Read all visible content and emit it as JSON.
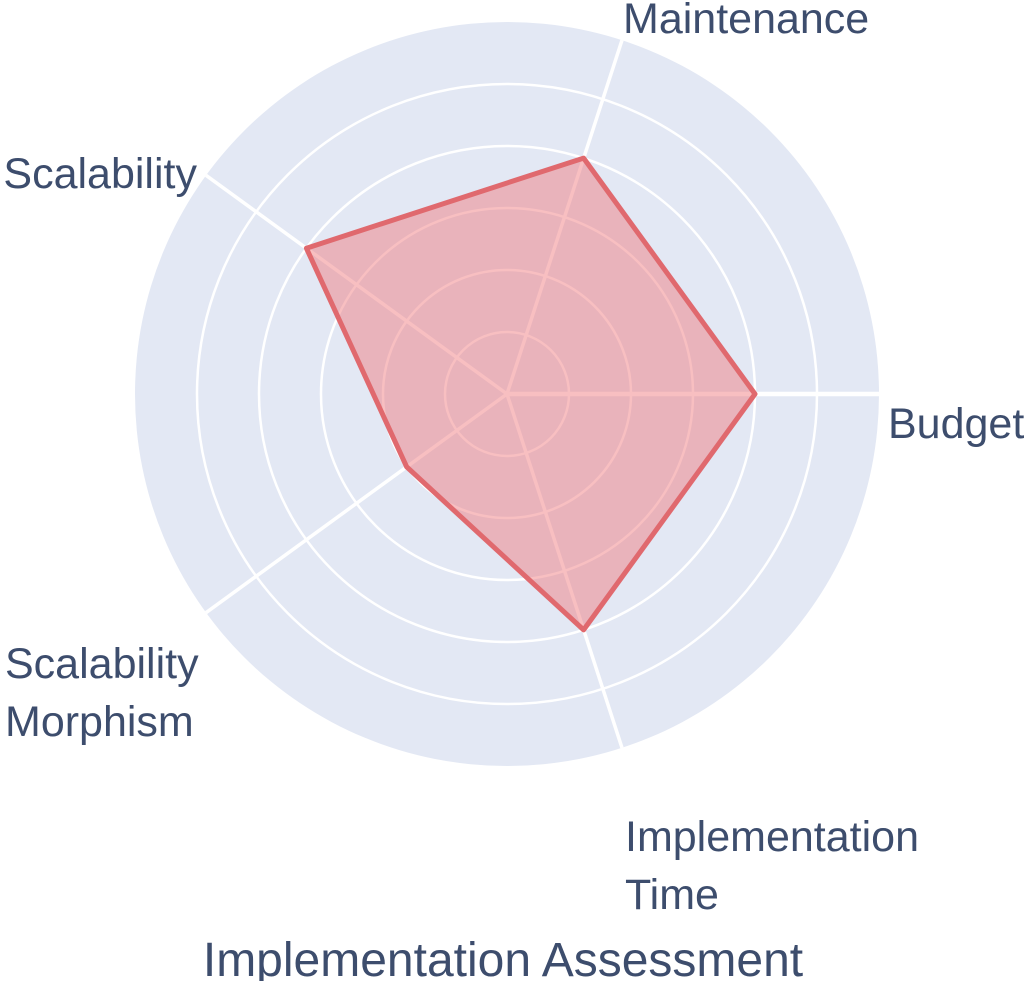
{
  "title": {
    "text": "Implementation Assessment"
  },
  "colors": {
    "background": "#FFFFFF",
    "disc": "#E3E8F4",
    "grid_line": "#FFFFFF",
    "series_stroke": "#E0696E",
    "series_fill": "#F0767B",
    "series_fill_opacity": 0.47,
    "label_text": "#3D4D6D"
  },
  "chart_data": {
    "type": "radar",
    "title": "Implementation Assessment",
    "categories": [
      "Maintenance",
      "Budget",
      "Implementation Time",
      "Scalability Morphism",
      "Scalability"
    ],
    "values": [
      4,
      4,
      4,
      2,
      4
    ],
    "max": 6,
    "grid_levels": 6,
    "grid_shape": "circle",
    "axis_angles_deg": [
      72,
      0,
      288,
      216,
      144
    ],
    "legend": "none",
    "series": [
      {
        "name": "Implementation Assessment",
        "values": [
          4,
          4,
          4,
          2,
          4
        ]
      }
    ]
  }
}
